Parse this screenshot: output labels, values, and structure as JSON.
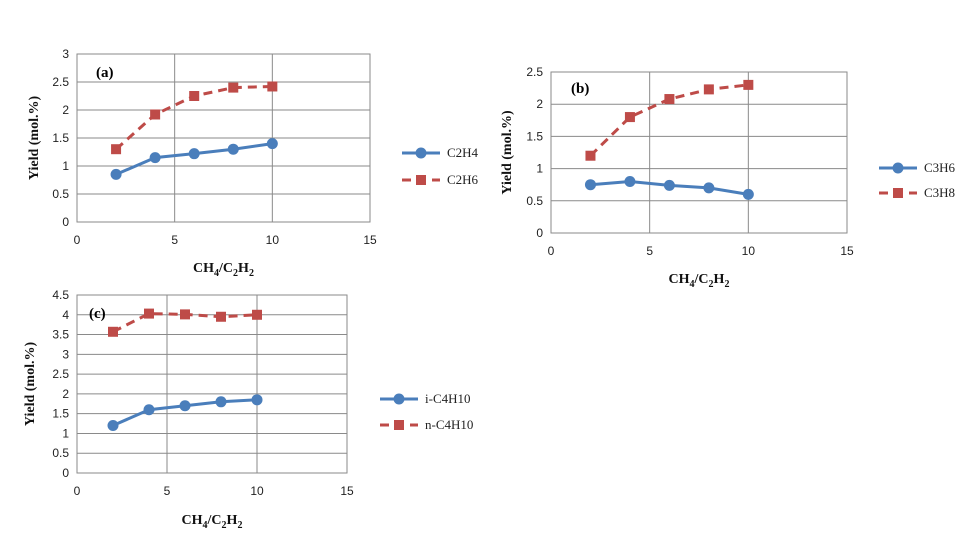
{
  "chart_data": [
    {
      "type": "line",
      "panel_label": "(a)",
      "xlabel": {
        "main": "CH",
        "s1": "4",
        "mid": "/C",
        "s2": "2",
        "end": "H",
        "s3": "2"
      },
      "ylabel": "Yield (mol.%)",
      "xlim": [
        0,
        15
      ],
      "ylim": [
        0,
        3
      ],
      "xticks": [
        0,
        5,
        10,
        15
      ],
      "yticks": [
        0,
        0.5,
        1,
        1.5,
        2,
        2.5,
        3
      ],
      "grid": "horizontal",
      "legend_position": "right",
      "series": [
        {
          "name": "C2H4",
          "color": "#4a7ebb",
          "marker": "circle",
          "dash": "solid",
          "points": [
            [
              2,
              0.85
            ],
            [
              4,
              1.15
            ],
            [
              6,
              1.22
            ],
            [
              8,
              1.3
            ],
            [
              10,
              1.4
            ]
          ]
        },
        {
          "name": "C2H6",
          "color": "#be4b48",
          "marker": "square",
          "dash": "dashed",
          "points": [
            [
              2,
              1.3
            ],
            [
              4,
              1.92
            ],
            [
              6,
              2.25
            ],
            [
              8,
              2.4
            ],
            [
              10,
              2.42
            ]
          ]
        }
      ]
    },
    {
      "type": "line",
      "panel_label": "(b)",
      "xlabel": {
        "main": "CH",
        "s1": "4",
        "mid": "/C",
        "s2": "2",
        "end": "H",
        "s3": "2"
      },
      "ylabel": "Yield (mol.%)",
      "xlim": [
        0,
        15
      ],
      "ylim": [
        0,
        2.5
      ],
      "xticks": [
        0,
        5,
        10,
        15
      ],
      "yticks": [
        0,
        0.5,
        1,
        1.5,
        2,
        2.5
      ],
      "grid": "horizontal",
      "legend_position": "right",
      "series": [
        {
          "name": "C3H6",
          "color": "#4a7ebb",
          "marker": "circle",
          "dash": "solid",
          "points": [
            [
              2,
              0.75
            ],
            [
              4,
              0.8
            ],
            [
              6,
              0.74
            ],
            [
              8,
              0.7
            ],
            [
              10,
              0.6
            ]
          ]
        },
        {
          "name": "C3H8",
          "color": "#be4b48",
          "marker": "square",
          "dash": "dashed",
          "points": [
            [
              2,
              1.2
            ],
            [
              4,
              1.8
            ],
            [
              6,
              2.08
            ],
            [
              8,
              2.23
            ],
            [
              10,
              2.3
            ]
          ]
        }
      ]
    },
    {
      "type": "line",
      "panel_label": "(c)",
      "xlabel": {
        "main": "CH",
        "s1": "4",
        "mid": "/C",
        "s2": "2",
        "end": "H",
        "s3": "2"
      },
      "ylabel": "Yield (mol.%)",
      "xlim": [
        0,
        15
      ],
      "ylim": [
        0,
        4.5
      ],
      "xticks": [
        0,
        5,
        10,
        15
      ],
      "yticks": [
        0,
        0.5,
        1,
        1.5,
        2,
        2.5,
        3,
        3.5,
        4,
        4.5
      ],
      "grid": "horizontal",
      "legend_position": "right",
      "series": [
        {
          "name": "i-C4H10",
          "color": "#4a7ebb",
          "marker": "circle",
          "dash": "solid",
          "points": [
            [
              2,
              1.2
            ],
            [
              4,
              1.6
            ],
            [
              6,
              1.7
            ],
            [
              8,
              1.8
            ],
            [
              10,
              1.85
            ]
          ]
        },
        {
          "name": "n-C4H10",
          "color": "#be4b48",
          "marker": "square",
          "dash": "dashed",
          "points": [
            [
              2,
              3.57
            ],
            [
              4,
              4.03
            ],
            [
              6,
              4.01
            ],
            [
              8,
              3.95
            ],
            [
              10,
              4.0
            ]
          ]
        }
      ]
    }
  ]
}
